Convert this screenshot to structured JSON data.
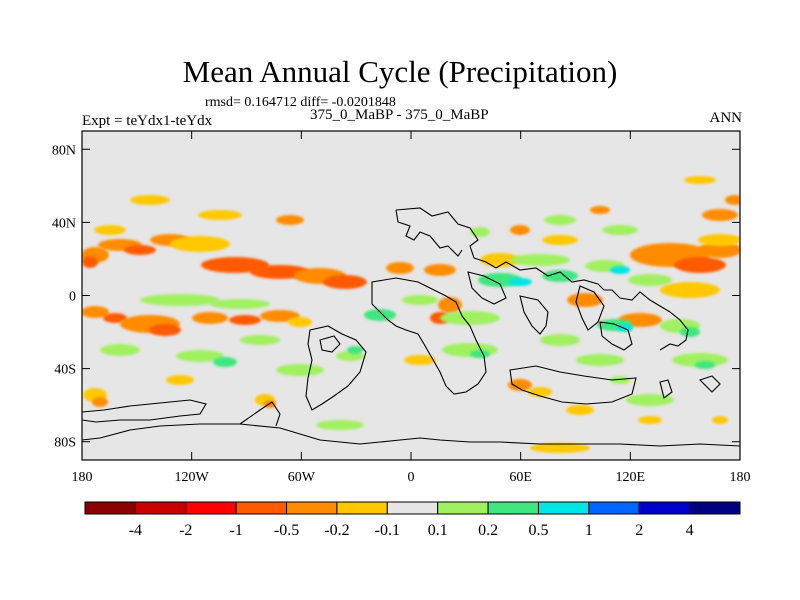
{
  "chart_data": {
    "type": "heatmap",
    "title": "Mean Annual Cycle (Precipitation)",
    "stats_text": "rmsd= 0.164712 diff= -0.0201848",
    "left_label": "Expt = teYdx1-teYdx",
    "center_label": "375_0_MaBP - 375_0_MaBP",
    "right_label": "ANN",
    "x_ticks": [
      "180",
      "120W",
      "60W",
      "0",
      "60E",
      "120E",
      "180"
    ],
    "y_ticks": [
      "80N",
      "40N",
      "0",
      "40S",
      "80S"
    ],
    "x_range": [
      -180,
      180
    ],
    "y_range": [
      -90,
      90
    ],
    "colorbar": {
      "labels": [
        "-4",
        "-2",
        "-1",
        "-0.5",
        "-0.2",
        "-0.1",
        "0.1",
        "0.2",
        "0.5",
        "1",
        "2",
        "4"
      ],
      "colors": [
        "#8b0000",
        "#c80000",
        "#ff0000",
        "#ff5a00",
        "#ff8c00",
        "#ffc800",
        "#e6e6e6",
        "#a0f060",
        "#40e680",
        "#00e6e6",
        "#0064ff",
        "#0000cd",
        "#000080"
      ]
    }
  }
}
